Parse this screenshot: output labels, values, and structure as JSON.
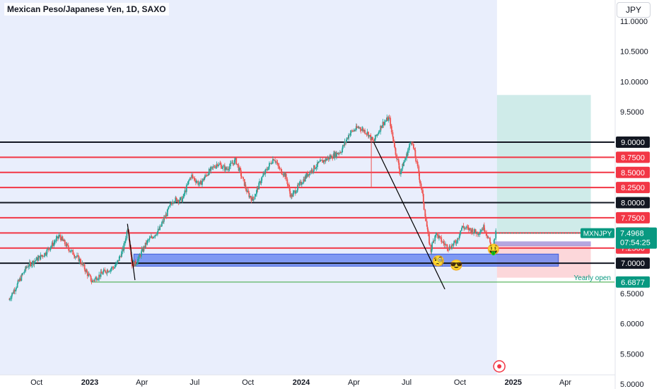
{
  "header": {
    "title": "Mexican Peso/Japanese Yen, 1D, SAXO",
    "currency": "JPY"
  },
  "colors": {
    "up": "#26a69a",
    "down": "#ef5350",
    "level_red": "#f23645",
    "level_black": "#131722",
    "zone_blue": "#5b7cf0",
    "shade": "#e9eefc"
  },
  "chart_data": {
    "type": "candlestick",
    "symbol": "MXNJPY",
    "timeframe": "1D",
    "ylim": [
      4.92,
      11.35
    ],
    "y_ticks": [
      "11.0000",
      "10.5000",
      "10.0000",
      "9.5000",
      "6.5000",
      "6.0000",
      "5.5000",
      "5.0000"
    ],
    "x_labels": [
      "Oct",
      "2023",
      "Apr",
      "Jul",
      "Oct",
      "2024",
      "Apr",
      "Jul",
      "Oct",
      "2025",
      "Apr"
    ],
    "x_label_bold": [
      "2023",
      "2024",
      "2025"
    ],
    "levels": [
      {
        "label": "9.0000",
        "color": "black"
      },
      {
        "label": "8.7500",
        "color": "red"
      },
      {
        "label": "8.5000",
        "color": "red"
      },
      {
        "label": "8.2500",
        "color": "red"
      },
      {
        "label": "8.0000",
        "color": "black"
      },
      {
        "label": "7.7500",
        "color": "red"
      },
      {
        "label": "7.5000",
        "color": "red"
      },
      {
        "label": "7.2500",
        "color": "red"
      },
      {
        "label": "7.0000",
        "color": "black"
      }
    ],
    "yearly_open": {
      "label": "Yearly open",
      "value": "6.6877"
    },
    "last_price": {
      "symbol": "MXNJPY",
      "value": "7.4968",
      "countdown": "07:54:25"
    },
    "zones": {
      "demand_low": 6.95,
      "demand_high": 7.15,
      "target_low": 7.5,
      "target_high": 9.78,
      "stop_low": 6.76,
      "stop_high": 7.3
    },
    "path": [
      [
        "2022-08-15",
        6.4
      ],
      [
        "2022-09-15",
        6.95
      ],
      [
        "2022-10-15",
        7.15
      ],
      [
        "2022-11-10",
        7.45
      ],
      [
        "2022-11-25",
        7.25
      ],
      [
        "2022-12-15",
        7.05
      ],
      [
        "2023-01-05",
        6.7
      ],
      [
        "2023-01-25",
        6.85
      ],
      [
        "2023-02-15",
        6.95
      ],
      [
        "2023-03-01",
        7.25
      ],
      [
        "2023-03-08",
        7.62
      ],
      [
        "2023-03-15",
        6.98
      ],
      [
        "2023-03-22",
        7.0
      ],
      [
        "2023-04-10",
        7.35
      ],
      [
        "2023-05-01",
        7.55
      ],
      [
        "2023-05-25",
        8.05
      ],
      [
        "2023-06-10",
        8.05
      ],
      [
        "2023-06-25",
        8.45
      ],
      [
        "2023-07-10",
        8.3
      ],
      [
        "2023-07-25",
        8.5
      ],
      [
        "2023-08-10",
        8.65
      ],
      [
        "2023-08-25",
        8.55
      ],
      [
        "2023-09-10",
        8.7
      ],
      [
        "2023-09-20",
        8.45
      ],
      [
        "2023-10-01",
        8.15
      ],
      [
        "2023-10-10",
        8.05
      ],
      [
        "2023-10-25",
        8.4
      ],
      [
        "2023-11-15",
        8.75
      ],
      [
        "2023-11-25",
        8.55
      ],
      [
        "2023-12-05",
        8.45
      ],
      [
        "2023-12-15",
        8.1
      ],
      [
        "2023-12-30",
        8.3
      ],
      [
        "2024-01-15",
        8.5
      ],
      [
        "2024-02-01",
        8.65
      ],
      [
        "2024-02-20",
        8.75
      ],
      [
        "2024-03-10",
        8.85
      ],
      [
        "2024-03-25",
        9.15
      ],
      [
        "2024-04-10",
        9.25
      ],
      [
        "2024-04-25",
        9.15
      ],
      [
        "2024-05-05",
        9.0
      ],
      [
        "2024-05-20",
        9.3
      ],
      [
        "2024-06-01",
        9.4
      ],
      [
        "2024-06-10",
        8.95
      ],
      [
        "2024-06-20",
        8.5
      ],
      [
        "2024-06-30",
        8.75
      ],
      [
        "2024-07-10",
        9.05
      ],
      [
        "2024-07-20",
        8.6
      ],
      [
        "2024-07-30",
        8.05
      ],
      [
        "2024-08-05",
        7.6
      ],
      [
        "2024-08-12",
        7.2
      ],
      [
        "2024-08-20",
        7.5
      ],
      [
        "2024-09-01",
        7.35
      ],
      [
        "2024-09-12",
        7.25
      ],
      [
        "2024-09-25",
        7.35
      ],
      [
        "2024-10-05",
        7.6
      ],
      [
        "2024-10-20",
        7.55
      ],
      [
        "2024-11-01",
        7.5
      ],
      [
        "2024-11-12",
        7.6
      ],
      [
        "2024-11-20",
        7.4
      ],
      [
        "2024-11-26",
        7.2
      ],
      [
        "2024-12-02",
        7.4968
      ]
    ],
    "spikes": [
      {
        "date": "2024-05-01",
        "low": 8.25
      }
    ]
  }
}
